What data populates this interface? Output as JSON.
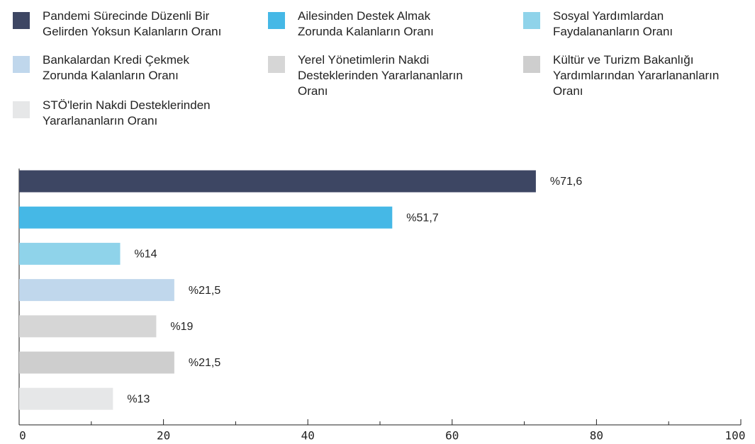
{
  "chart_data": {
    "type": "bar",
    "orientation": "horizontal",
    "categories": [
      "Pandemi Sürecinde Düzenli Bir\nGelirden Yoksun Kalanların Oranı",
      "Ailesinden Destek Almak\nZorunda Kalanların Oranı",
      "Sosyal Yardımlardan\nFaydalananların Oranı",
      "Bankalardan Kredi Çekmek\nZorunda Kalanların Oranı",
      "Yerel Yönetimlerin Nakdi\nDesteklerinden Yararlananların\nOranı",
      "Kültür ve Turizm Bakanlığı\nYardımlarından Yararlananların\nOranı",
      "STÖ'lerin Nakdi Desteklerinden\nYararlananların Oranı"
    ],
    "values": [
      71.6,
      51.7,
      14,
      21.5,
      19,
      21.5,
      13
    ],
    "value_labels": [
      "%71,6",
      "%51,7",
      "%14",
      "%21,5",
      "%19",
      "%21,5",
      "%13"
    ],
    "colors": [
      "#3d4663",
      "#45b8e6",
      "#8fd3ea",
      "#c0d7ec",
      "#d6d6d6",
      "#cecece",
      "#e6e7e8"
    ],
    "xlim": [
      0,
      100
    ],
    "xticks": [
      0,
      20,
      40,
      60,
      80,
      100
    ],
    "minor_xticks": [
      10,
      30,
      50,
      70,
      90
    ]
  }
}
